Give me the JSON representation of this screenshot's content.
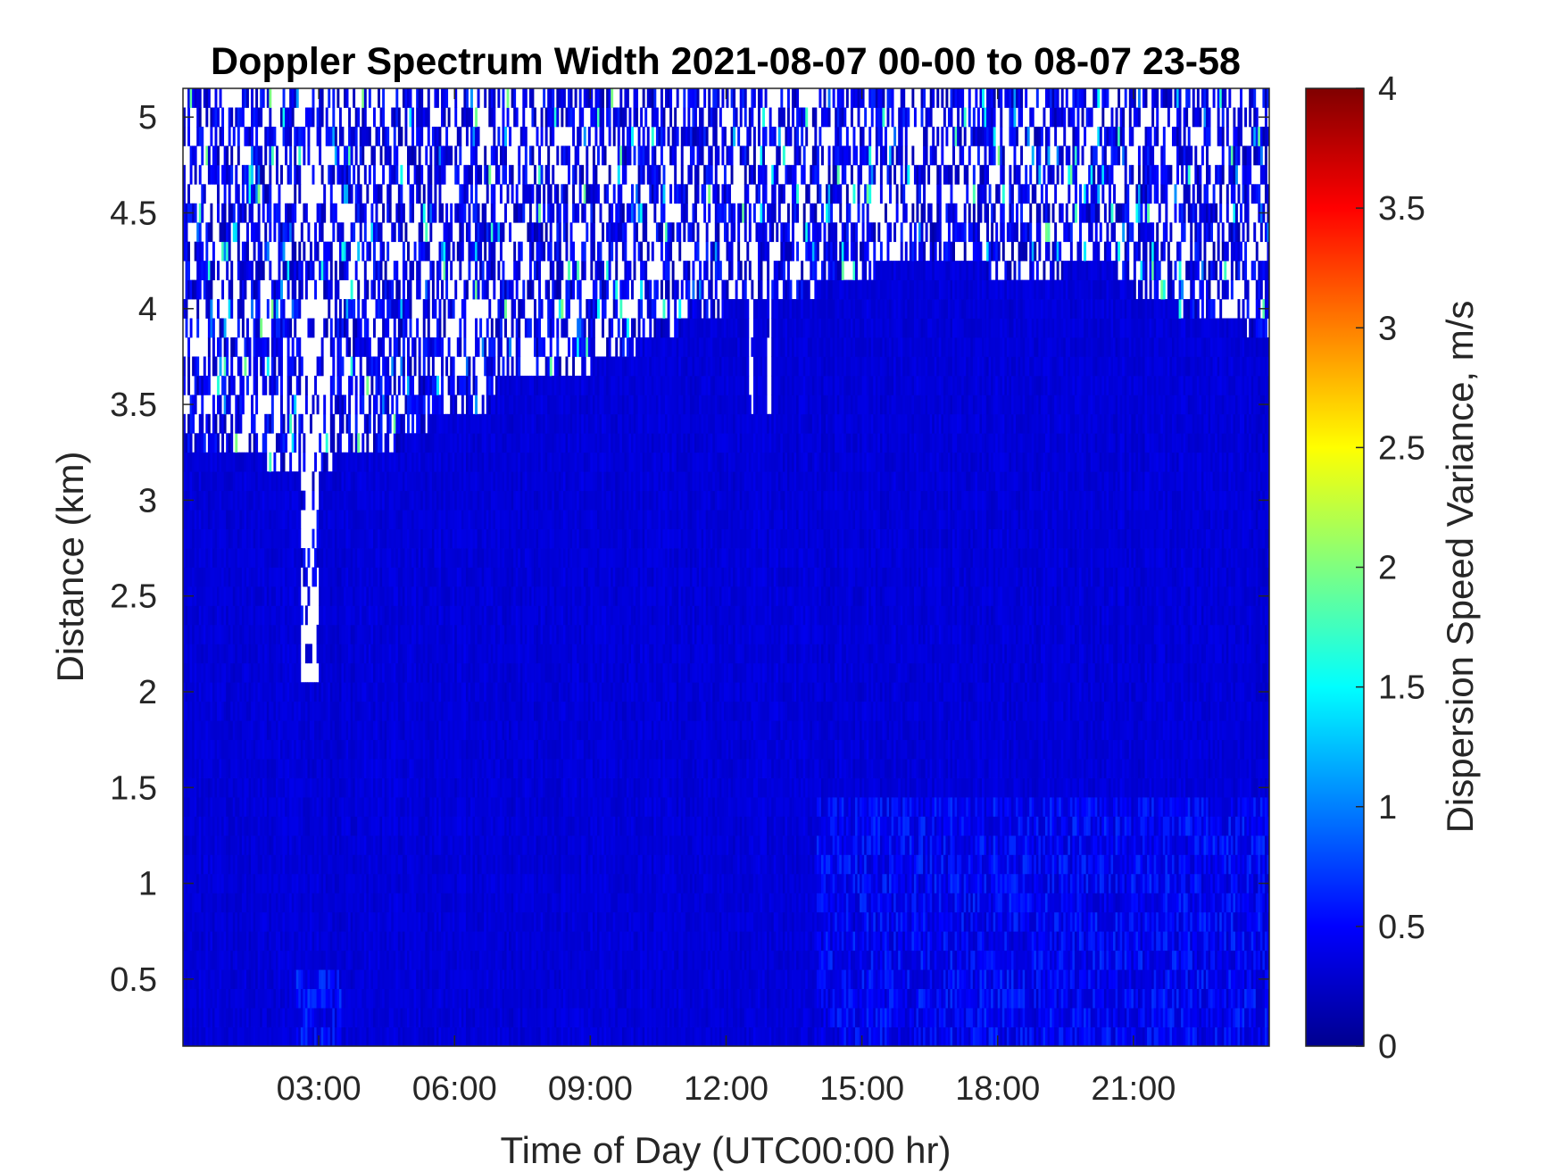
{
  "chart_data": {
    "type": "heatmap",
    "title": "Doppler Spectrum Width 2021-08-07 00-00 to 08-07 23-58",
    "xlabel": "Time of Day (UTC00:00 hr)",
    "ylabel": "Distance (km)",
    "x_unit": "hours (UTC)",
    "xlim": [
      0,
      24
    ],
    "ylim": [
      0.15,
      5.15
    ],
    "x_ticks": [
      3,
      6,
      9,
      12,
      15,
      18,
      21
    ],
    "x_tick_labels": [
      "03:00",
      "06:00",
      "09:00",
      "12:00",
      "15:00",
      "18:00",
      "21:00"
    ],
    "y_ticks": [
      0.5,
      1,
      1.5,
      2,
      2.5,
      3,
      3.5,
      4,
      4.5,
      5
    ],
    "y_tick_labels": [
      "0.5",
      "1",
      "1.5",
      "2",
      "2.5",
      "3",
      "3.5",
      "4",
      "4.5",
      "5"
    ],
    "colormap": "jet",
    "colorbar": {
      "label": "Dispersion Speed Variance, m/s",
      "clim": [
        0,
        4
      ],
      "ticks": [
        0,
        0.5,
        1,
        1.5,
        2,
        2.5,
        3,
        3.5,
        4
      ],
      "tick_labels": [
        "0",
        "0.5",
        "1",
        "1.5",
        "2",
        "2.5",
        "3",
        "3.5",
        "4"
      ]
    },
    "cloud_top_height_km": [
      {
        "hours": [
          0.0,
          1.8
        ],
        "top": 3.25
      },
      {
        "hours": [
          1.8,
          3.3
        ],
        "top": 3.15
      },
      {
        "hours": [
          3.3,
          4.8
        ],
        "top": 3.25
      },
      {
        "hours": [
          4.8,
          5.4
        ],
        "top": 3.35
      },
      {
        "hours": [
          5.4,
          6.8
        ],
        "top": 3.45
      },
      {
        "hours": [
          6.8,
          7.0
        ],
        "top": 3.55
      },
      {
        "hours": [
          7.0,
          9.0
        ],
        "top": 3.65
      },
      {
        "hours": [
          9.0,
          10.0
        ],
        "top": 3.75
      },
      {
        "hours": [
          10.0,
          11.0
        ],
        "top": 3.85
      },
      {
        "hours": [
          11.0,
          12.0
        ],
        "top": 3.95
      },
      {
        "hours": [
          12.0,
          14.0
        ],
        "top": 4.05
      },
      {
        "hours": [
          14.0,
          15.3
        ],
        "top": 4.15
      },
      {
        "hours": [
          15.3,
          17.7
        ],
        "top": 4.25
      },
      {
        "hours": [
          17.7,
          19.5
        ],
        "top": 4.15
      },
      {
        "hours": [
          19.5,
          20.6
        ],
        "top": 4.25
      },
      {
        "hours": [
          20.6,
          21.0
        ],
        "top": 4.15
      },
      {
        "hours": [
          21.0,
          22.0
        ],
        "top": 4.05
      },
      {
        "hours": [
          22.0,
          23.5
        ],
        "top": 3.95
      },
      {
        "hours": [
          23.5,
          24.0
        ],
        "top": 3.85
      }
    ],
    "gaps": [
      {
        "hours": [
          2.6,
          3.0
        ],
        "bottom": 2.05
      },
      {
        "hours": [
          12.5,
          12.6
        ],
        "bottom": 3.5
      },
      {
        "hours": [
          12.9,
          13.0
        ],
        "bottom": 3.45
      }
    ],
    "typical_value_in_cloud": 0.35,
    "typical_value_above_cloud": 0.4,
    "boundary_layer_values": [
      {
        "hours": [
          2.5,
          3.5
        ],
        "height_range": [
          0.15,
          0.5
        ],
        "value": 0.6
      },
      {
        "hours": [
          14.0,
          24.0
        ],
        "height_range": [
          0.15,
          1.5
        ],
        "value": 0.55
      }
    ]
  }
}
